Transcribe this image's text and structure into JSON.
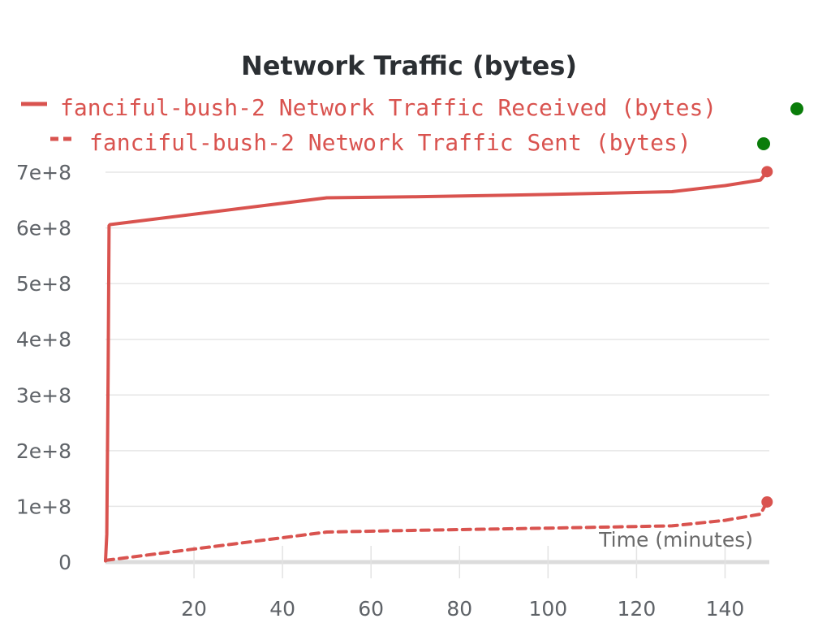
{
  "chart_data": {
    "type": "line",
    "title": "Network Traffic (bytes)",
    "xlabel": "Time (minutes)",
    "ylabel": "",
    "xlim": [
      0,
      150
    ],
    "ylim": [
      0,
      700000000
    ],
    "x_ticks": [
      20,
      40,
      60,
      80,
      100,
      120,
      140
    ],
    "x_tick_labels": [
      "20",
      "40",
      "60",
      "80",
      "100",
      "120",
      "140"
    ],
    "y_ticks": [
      0,
      100000000,
      200000000,
      300000000,
      400000000,
      500000000,
      600000000,
      700000000
    ],
    "y_tick_labels": [
      "0",
      "1e+8",
      "2e+8",
      "3e+8",
      "4e+8",
      "5e+8",
      "6e+8",
      "7e+8"
    ],
    "grid": true,
    "legend_position": "top",
    "series": [
      {
        "name": "fanciful-bush-2 Network Traffic Received (bytes)",
        "color": "#d9534f",
        "dash": "solid",
        "status_color": "#0a7d0a",
        "x": [
          0,
          0.3,
          0.6,
          0.8,
          1,
          50,
          70,
          100,
          128,
          140,
          148,
          149.5
        ],
        "y": [
          2000000,
          50000000,
          350000000,
          604000000,
          606000000,
          654000000,
          656000000,
          660000000,
          665000000,
          676000000,
          686000000,
          701000000
        ]
      },
      {
        "name": "fanciful-bush-2 Network Traffic Sent (bytes)",
        "color": "#d9534f",
        "dash": "dashed",
        "status_color": "#0a7d0a",
        "x": [
          0,
          50,
          70,
          100,
          128,
          140,
          148,
          149.5
        ],
        "y": [
          3000000,
          54000000,
          57000000,
          61000000,
          65000000,
          75000000,
          86000000,
          108000000
        ]
      }
    ]
  }
}
